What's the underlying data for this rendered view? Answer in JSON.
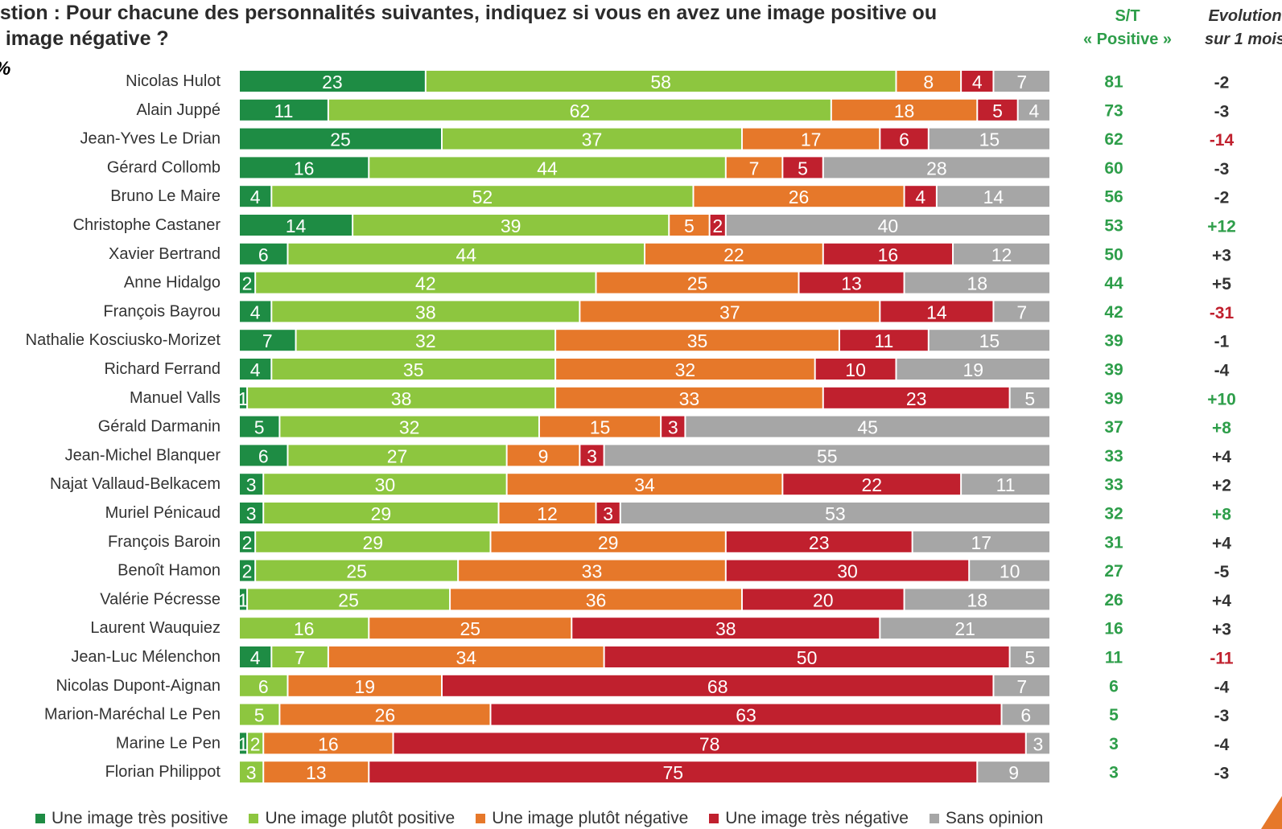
{
  "question": {
    "line1": "estion : Pour chacune des personnalités suivantes, indiquez si vous en avez une image positive ou",
    "line2": "e image négative ?"
  },
  "unit": "%",
  "headers": {
    "st_line1": "S/T",
    "st_line2": "« Positive »",
    "evo_line1": "Evolution",
    "evo_line2": "sur 1 mois"
  },
  "colors": {
    "tres_positive": "#1e8c44",
    "plutot_positive": "#8dc63f",
    "plutot_negative": "#e6782a",
    "tres_negative": "#c0202e",
    "sans_opinion": "#a6a6a6",
    "st_text": "#2e9e4a",
    "evo_negative_strong": "#c0202e",
    "evo_positive_strong": "#2e9e4a",
    "evo_neutral": "#333333",
    "logo": "#e6782a"
  },
  "chart_data": {
    "type": "bar",
    "orientation": "horizontal",
    "stacked": true,
    "categories": [
      "Nicolas Hulot",
      "Alain Juppé",
      "Jean-Yves Le Drian",
      "Gérard Collomb",
      "Bruno Le Maire",
      "Christophe Castaner",
      "Xavier Bertrand",
      "Anne Hidalgo",
      "François Bayrou",
      "Nathalie Kosciusko-Morizet",
      "Richard Ferrand",
      "Manuel Valls",
      "Gérald Darmanin",
      "Jean-Michel Blanquer",
      "Najat Vallaud-Belkacem",
      "Muriel Pénicaud",
      "François Baroin",
      "Benoît Hamon",
      "Valérie Pécresse",
      "Laurent Wauquiez",
      "Jean-Luc Mélenchon",
      "Nicolas Dupont-Aignan",
      "Marion-Maréchal Le Pen",
      "Marine Le Pen",
      "Florian Philippot"
    ],
    "series": [
      {
        "name": "Une image très positive",
        "color_key": "tres_positive",
        "values": [
          23,
          11,
          25,
          16,
          4,
          14,
          6,
          2,
          4,
          7,
          4,
          1,
          5,
          6,
          3,
          3,
          2,
          2,
          1,
          0,
          4,
          0,
          0,
          1,
          0
        ]
      },
      {
        "name": "Une image plutôt positive",
        "color_key": "plutot_positive",
        "values": [
          58,
          62,
          37,
          44,
          52,
          39,
          44,
          42,
          38,
          32,
          35,
          38,
          32,
          27,
          30,
          29,
          29,
          25,
          25,
          16,
          7,
          6,
          5,
          2,
          3
        ]
      },
      {
        "name": "Une image plutôt négative",
        "color_key": "plutot_negative",
        "values": [
          8,
          18,
          17,
          7,
          26,
          5,
          22,
          25,
          37,
          35,
          32,
          33,
          15,
          9,
          34,
          12,
          29,
          33,
          36,
          25,
          34,
          19,
          26,
          16,
          13
        ]
      },
      {
        "name": "Une image très négative",
        "color_key": "tres_negative",
        "values": [
          4,
          5,
          6,
          5,
          4,
          2,
          16,
          13,
          14,
          11,
          10,
          23,
          3,
          3,
          22,
          3,
          23,
          30,
          20,
          38,
          50,
          68,
          63,
          78,
          75
        ]
      },
      {
        "name": "Sans opinion",
        "color_key": "sans_opinion",
        "values": [
          7,
          4,
          15,
          28,
          14,
          40,
          12,
          18,
          7,
          15,
          19,
          5,
          45,
          55,
          11,
          53,
          17,
          10,
          18,
          21,
          5,
          7,
          6,
          3,
          9
        ]
      }
    ],
    "st_positive": [
      "81",
      "73",
      "62",
      "60",
      "56",
      "53",
      "50",
      "44",
      "42",
      "39",
      "39",
      "39",
      "37",
      "33",
      "33",
      "32",
      "31",
      "27",
      "26",
      "16",
      "11",
      "6",
      "5",
      "3",
      "3"
    ],
    "evolution": [
      "-2",
      "-3",
      "-14",
      "-3",
      "-2",
      "+12",
      "+3",
      "+5",
      "-31",
      "-1",
      "-4",
      "+10",
      "+8",
      "+4",
      "+2",
      "+8",
      "+4",
      "-5",
      "+4",
      "+3",
      "-11",
      "-4",
      "-3",
      "-4",
      "-3"
    ],
    "evolution_highlight": [
      "neutral",
      "neutral",
      "negative",
      "neutral",
      "neutral",
      "positive",
      "neutral",
      "neutral",
      "negative",
      "neutral",
      "neutral",
      "positive",
      "positive",
      "neutral",
      "neutral",
      "positive",
      "neutral",
      "neutral",
      "neutral",
      "neutral",
      "negative",
      "neutral",
      "neutral",
      "neutral",
      "neutral"
    ],
    "legend_placement": "bottom"
  }
}
